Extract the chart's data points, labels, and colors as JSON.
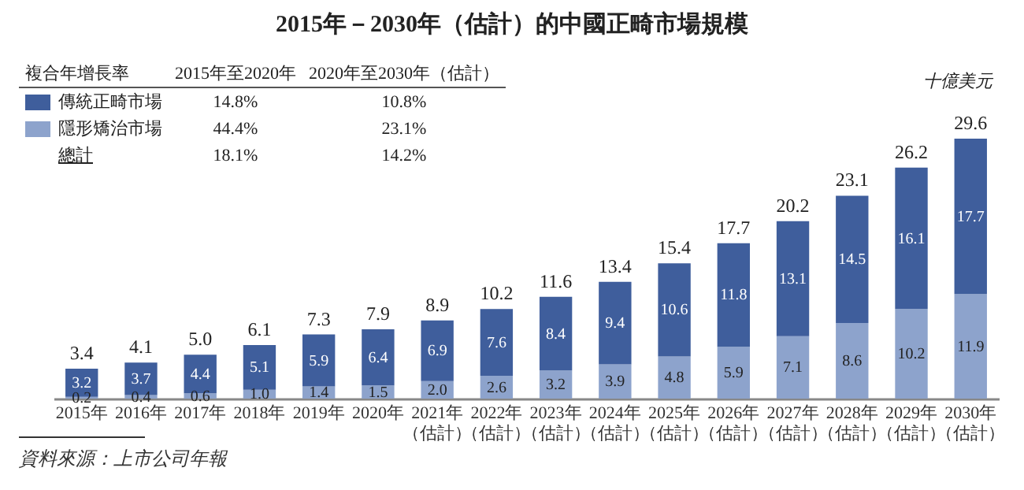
{
  "chart_data": {
    "type": "bar",
    "title": "2015年－2030年（估計）的中國正畸市場規模",
    "ylabel": "十億美元",
    "categories": [
      "2015年",
      "2016年",
      "2017年",
      "2018年",
      "2019年",
      "2020年",
      "2021年（估計）",
      "2022年（估計）",
      "2023年（估計）",
      "2024年（估計）",
      "2025年（估計）",
      "2026年（估計）",
      "2027年（估計）",
      "2028年（估計）",
      "2029年（估計）",
      "2030年（估計）"
    ],
    "stacked": true,
    "legend": "top left",
    "series": [
      {
        "name": "隱形矯治市場",
        "color": "#8da3cc",
        "values": [
          0.2,
          0.4,
          0.6,
          1.0,
          1.4,
          1.5,
          2.0,
          2.6,
          3.2,
          3.9,
          4.8,
          5.9,
          7.1,
          8.6,
          10.2,
          11.9
        ],
        "value_labels": [
          "0.2",
          "0.4",
          "0.6",
          "1.0",
          "1.4",
          "1.5",
          "2.0",
          "2.6",
          "3.2",
          "3.9",
          "4.8",
          "5.9",
          "7.1",
          "8.6",
          "10.2",
          "11.9"
        ]
      },
      {
        "name": "傳統正畸市場",
        "color": "#3f5e9c",
        "values": [
          3.2,
          3.7,
          4.4,
          5.1,
          5.9,
          6.4,
          6.9,
          7.6,
          8.4,
          9.4,
          10.6,
          11.8,
          13.1,
          14.5,
          16.1,
          17.7
        ],
        "value_labels": [
          "3.2",
          "3.7",
          "4.4",
          "5.1",
          "5.9",
          "6.4",
          "6.9",
          "7.6",
          "8.4",
          "9.4",
          "10.6",
          "11.8",
          "13.1",
          "14.5",
          "16.1",
          "17.7"
        ]
      }
    ],
    "totals": [
      "3.4",
      "4.1",
      "5.0",
      "6.1",
      "7.3",
      "7.9",
      "8.9",
      "10.2",
      "11.6",
      "13.4",
      "15.4",
      "17.7",
      "20.2",
      "23.1",
      "26.2",
      "29.6"
    ],
    "annotations": [
      "複合年增長率",
      "2015年至2020年",
      "2020年至2030年（估計）",
      "14.8%",
      "10.8%",
      "44.4%",
      "23.1%",
      "總計",
      "18.1%",
      "14.2%",
      "資料來源：上市公司年報"
    ]
  }
}
